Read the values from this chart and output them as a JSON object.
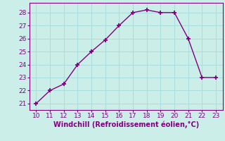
{
  "x": [
    10,
    11,
    12,
    13,
    14,
    15,
    16,
    17,
    18,
    19,
    20,
    21,
    22,
    23
  ],
  "y": [
    21,
    22,
    22.5,
    24,
    25,
    25.9,
    27,
    28,
    28.2,
    28,
    28,
    26,
    23,
    23
  ],
  "line_color": "#800080",
  "marker": "+",
  "marker_size": 5,
  "marker_edge_width": 1.3,
  "bg_color": "#cceee8",
  "grid_color": "#aadddd",
  "xlabel": "Windchill (Refroidissement éolien,°C)",
  "xlabel_color": "#800080",
  "tick_color": "#800080",
  "spine_color": "#800080",
  "xlim": [
    9.5,
    23.5
  ],
  "ylim": [
    20.5,
    28.75
  ],
  "xticks": [
    10,
    11,
    12,
    13,
    14,
    15,
    16,
    17,
    18,
    19,
    20,
    21,
    22,
    23
  ],
  "yticks": [
    21,
    22,
    23,
    24,
    25,
    26,
    27,
    28
  ],
  "line_width": 1.0,
  "tick_fontsize": 6.5,
  "xlabel_fontsize": 7.0
}
